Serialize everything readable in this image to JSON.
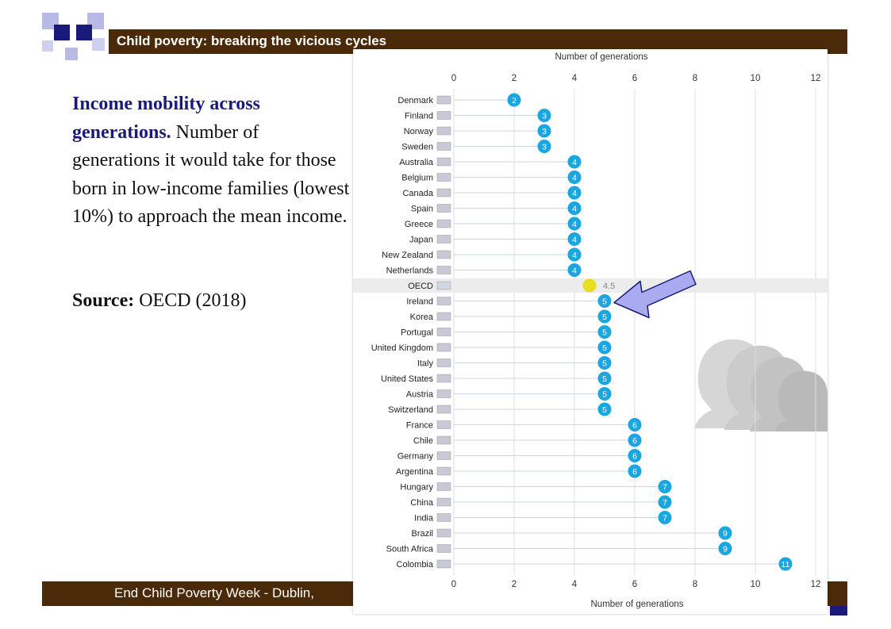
{
  "slide": {
    "title": "Child poverty: breaking the vicious cycles",
    "heading_bold": "Income mobility across generations.",
    "heading_rest": " Number of generations it would take for those born in low-income families (lowest 10%) to approach the mean income.",
    "source_label": "Source:",
    "source_value": " OECD (2018)",
    "footer": "End Child Poverty Week - Dublin,"
  },
  "colors": {
    "title_bar": "#4a2a08",
    "accent_navy": "#1a1a7a",
    "bubble": "#1aa6e0",
    "oecd_dot": "#e6de1e",
    "arrow_fill": "#a9aaf0",
    "arrow_stroke": "#1a1a7a"
  },
  "chart_data": {
    "type": "dot",
    "title": "",
    "xlabel": "Number of generations",
    "xlim": [
      0,
      12
    ],
    "xticks": [
      0,
      2,
      4,
      6,
      8,
      10,
      12
    ],
    "categories": [
      "Denmark",
      "Finland",
      "Norway",
      "Sweden",
      "Australia",
      "Belgium",
      "Canada",
      "Spain",
      "Greece",
      "Japan",
      "New Zealand",
      "Netherlands",
      "OECD",
      "Ireland",
      "Korea",
      "Portugal",
      "United Kingdom",
      "Italy",
      "United States",
      "Austria",
      "Switzerland",
      "France",
      "Chile",
      "Germany",
      "Argentina",
      "Hungary",
      "China",
      "India",
      "Brazil",
      "South Africa",
      "Colombia"
    ],
    "values": [
      2,
      3,
      3,
      3,
      4,
      4,
      4,
      4,
      4,
      4,
      4,
      4,
      4.5,
      5,
      5,
      5,
      5,
      5,
      5,
      5,
      5,
      6,
      6,
      6,
      6,
      7,
      7,
      7,
      9,
      9,
      11
    ],
    "highlight": {
      "category": "OECD",
      "value": 4.5,
      "label": "4.5"
    },
    "annotation": {
      "type": "arrow",
      "points_to": "Ireland"
    }
  }
}
